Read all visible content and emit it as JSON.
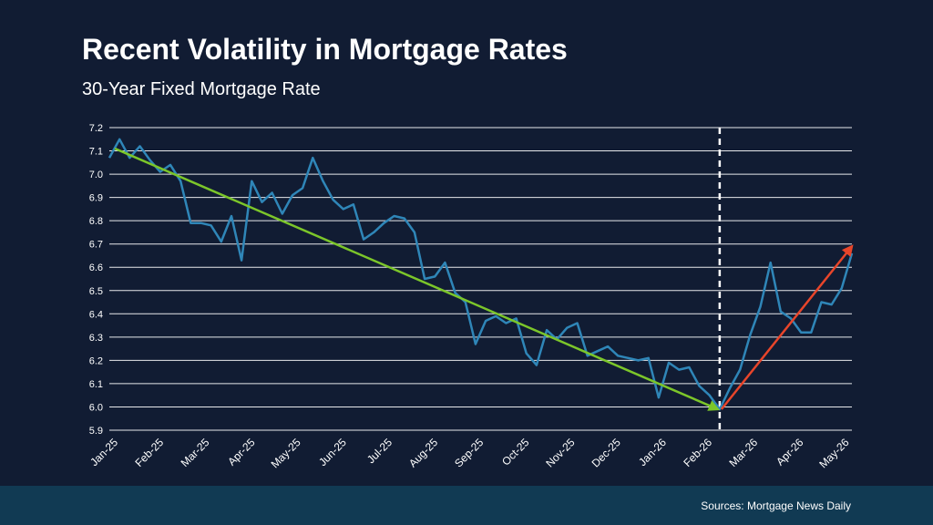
{
  "title": "Recent Volatility in Mortgage Rates",
  "subtitle": "30-Year Fixed Mortgage Rate",
  "source": "Sources: Mortgage News Daily",
  "colors": {
    "background": "#111c33",
    "footer": "#113a53",
    "line": "#2f86b8",
    "grid": "#ffffff",
    "down_trend": "#7cc62a",
    "up_trend": "#e8452a",
    "marker": "#ffffff"
  },
  "chart_data": {
    "type": "line",
    "x_tick_labels": [
      "Jan-25",
      "Feb-25",
      "Mar-25",
      "Apr-25",
      "May-25",
      "Jun-25",
      "Jul-25",
      "Aug-25",
      "Sep-25",
      "Oct-25",
      "Nov-25",
      "Dec-25",
      "Jan-26",
      "Feb-26",
      "Mar-26",
      "Apr-26",
      "May-26"
    ],
    "y_ticks": [
      5.9,
      6.0,
      6.1,
      6.2,
      6.3,
      6.4,
      6.5,
      6.6,
      6.7,
      6.8,
      6.9,
      7.0,
      7.1,
      7.2
    ],
    "ylim": [
      5.9,
      7.2
    ],
    "grid": true,
    "values": [
      7.07,
      7.15,
      7.07,
      7.12,
      7.06,
      7.01,
      7.04,
      6.97,
      6.79,
      6.79,
      6.78,
      6.71,
      6.82,
      6.63,
      6.97,
      6.88,
      6.92,
      6.83,
      6.91,
      6.94,
      7.07,
      6.97,
      6.89,
      6.85,
      6.87,
      6.72,
      6.75,
      6.79,
      6.82,
      6.81,
      6.75,
      6.55,
      6.56,
      6.62,
      6.49,
      6.45,
      6.27,
      6.37,
      6.39,
      6.36,
      6.38,
      6.23,
      6.18,
      6.33,
      6.29,
      6.34,
      6.36,
      6.22,
      6.24,
      6.26,
      6.22,
      6.21,
      6.2,
      6.21,
      6.04,
      6.19,
      6.16,
      6.17,
      6.09,
      6.05,
      5.99,
      6.08,
      6.16,
      6.31,
      6.43,
      6.62,
      6.41,
      6.38,
      6.32,
      6.32,
      6.45,
      6.44,
      6.51,
      6.66
    ],
    "vertical_marker": {
      "at_label": "Mar-26",
      "style": "dashed"
    },
    "trend_arrows": [
      {
        "name": "down",
        "from": {
          "month": "Jan-25",
          "value": 7.11
        },
        "to": {
          "month": "Mar-26",
          "value": 5.99
        }
      },
      {
        "name": "up",
        "from": {
          "month": "Mar-26",
          "value": 5.99
        },
        "to": {
          "month": "May-26+",
          "value": 6.69
        }
      }
    ]
  }
}
